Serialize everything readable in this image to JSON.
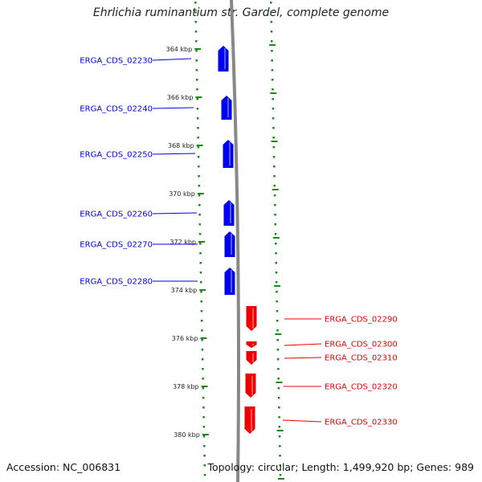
{
  "title": "Ehrlichia ruminantium str. Gardel, complete genome",
  "footer": {
    "accession_label": "Accession:",
    "accession": "NC_006831",
    "topology_label": "Topology:",
    "topology": "circular;",
    "length_label": "Length:",
    "length": "1,499,920 bp;",
    "genes_label": "Genes:",
    "genes": "989"
  },
  "colors": {
    "forward_strand": "#0000ee",
    "reverse_strand": "#ee0000",
    "backbone": "#888888",
    "tick_marks": "#1a8a1a"
  },
  "ticks": [
    {
      "kbp": 364,
      "label": "364 kbp"
    },
    {
      "kbp": 366,
      "label": "366 kbp"
    },
    {
      "kbp": 368,
      "label": "368 kbp"
    },
    {
      "kbp": 370,
      "label": "370 kbp"
    },
    {
      "kbp": 372,
      "label": "372 kbp"
    },
    {
      "kbp": 374,
      "label": "374 kbp"
    },
    {
      "kbp": 376,
      "label": "376 kbp"
    },
    {
      "kbp": 378,
      "label": "378 kbp"
    },
    {
      "kbp": 380,
      "label": "380 kbp"
    }
  ],
  "genes": [
    {
      "name": "ERGA_CDS_02230",
      "strand": "+"
    },
    {
      "name": "ERGA_CDS_02240",
      "strand": "+"
    },
    {
      "name": "ERGA_CDS_02250",
      "strand": "+"
    },
    {
      "name": "ERGA_CDS_02260",
      "strand": "+"
    },
    {
      "name": "ERGA_CDS_02270",
      "strand": "+"
    },
    {
      "name": "ERGA_CDS_02280",
      "strand": "+"
    },
    {
      "name": "ERGA_CDS_02290",
      "strand": "-"
    },
    {
      "name": "ERGA_CDS_02300",
      "strand": "-"
    },
    {
      "name": "ERGA_CDS_02310",
      "strand": "-"
    },
    {
      "name": "ERGA_CDS_02320",
      "strand": "-"
    },
    {
      "name": "ERGA_CDS_02330",
      "strand": "-"
    }
  ]
}
